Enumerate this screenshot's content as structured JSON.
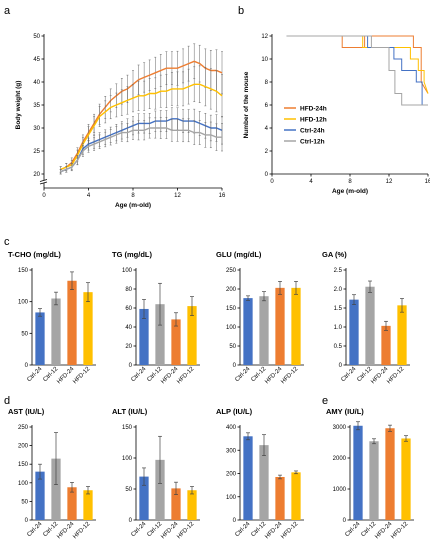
{
  "panel_letters": {
    "a": "a",
    "b": "b",
    "c": "c",
    "d": "d",
    "e": "e"
  },
  "chart_data": [
    {
      "panel": "a",
      "type": "line",
      "xlabel": "Age (m-old)",
      "ylabel": "Body weight (g)",
      "xlim": [
        0,
        16
      ],
      "ylim": [
        20,
        50
      ],
      "xticks": [
        0,
        4,
        8,
        12,
        16
      ],
      "yticks": [
        20,
        25,
        30,
        35,
        40,
        45,
        50
      ],
      "broken_axis": true,
      "error_bars": "SE",
      "series": [
        {
          "color": "#ED7D31",
          "x": [
            1.5,
            2,
            2.5,
            3,
            3.5,
            4,
            4.5,
            5,
            5.5,
            6,
            6.5,
            7,
            7.5,
            8,
            8.5,
            9,
            9.5,
            10,
            10.5,
            11,
            11.5,
            12,
            12.5,
            13,
            13.5,
            14,
            14.5,
            15,
            15.5,
            16
          ],
          "y": [
            21,
            21.5,
            22.5,
            24.5,
            27,
            29,
            31,
            33,
            34.5,
            36,
            37,
            38,
            38.5,
            39.5,
            40.5,
            41,
            41.5,
            42,
            42.5,
            43,
            43,
            43,
            43.5,
            44,
            44.5,
            44,
            43,
            42.5,
            42.5,
            42
          ],
          "err": [
            0.6,
            0.8,
            1,
            1.2,
            1.5,
            1.8,
            2,
            2.2,
            2.4,
            2.5,
            2.6,
            2.8,
            3,
            3,
            3.2,
            3.2,
            3.3,
            3.4,
            3.5,
            3.6,
            3.6,
            3.7,
            3.7,
            3.8,
            3.8,
            4,
            4.2,
            4.4,
            4.5,
            4.6
          ]
        },
        {
          "color": "#FFC000",
          "x": [
            1.5,
            2,
            2.5,
            3,
            3.5,
            4,
            4.5,
            5,
            5.5,
            6,
            6.5,
            7,
            7.5,
            8,
            8.5,
            9,
            9.5,
            10,
            10.5,
            11,
            11.5,
            12,
            12.5,
            13,
            13.5,
            14,
            14.5,
            15,
            15.5,
            16
          ],
          "y": [
            21,
            21.5,
            22,
            24,
            26.5,
            28.5,
            30.5,
            32.5,
            33.5,
            34.5,
            35,
            35.5,
            36,
            36.5,
            37,
            37,
            37.5,
            37.5,
            38,
            38,
            38.5,
            38.5,
            38.5,
            39,
            39.5,
            39.5,
            39,
            38.5,
            38,
            37
          ],
          "err": [
            0.6,
            0.8,
            1,
            1.2,
            1.5,
            1.8,
            2,
            2.2,
            2.4,
            2.5,
            2.6,
            2.8,
            3,
            3,
            3.2,
            3.2,
            3.3,
            3.4,
            3.5,
            3.6,
            3.6,
            3.7,
            3.7,
            3.8,
            3.8,
            4,
            4.2,
            4.4,
            4.5,
            4.6
          ]
        },
        {
          "color": "#4472C4",
          "x": [
            1.5,
            2,
            2.5,
            3,
            3.5,
            4,
            4.5,
            5,
            5.5,
            6,
            6.5,
            7,
            7.5,
            8,
            8.5,
            9,
            9.5,
            10,
            10.5,
            11,
            11.5,
            12,
            12.5,
            13,
            13.5,
            14,
            14.5,
            15,
            15.5,
            16
          ],
          "y": [
            20.5,
            21,
            21.5,
            23,
            25.5,
            26.5,
            27,
            27.5,
            28,
            28.5,
            29,
            29.5,
            30,
            30.5,
            31,
            31,
            31,
            31.5,
            31.5,
            31.5,
            32,
            32,
            31.5,
            31.5,
            31.5,
            31,
            30.5,
            30,
            30,
            29.5
          ],
          "err": [
            0.5,
            0.6,
            0.8,
            1,
            1.2,
            1.3,
            1.4,
            1.5,
            1.6,
            1.7,
            1.8,
            1.9,
            2,
            2,
            2.1,
            2.1,
            2.2,
            2.2,
            2.3,
            2.3,
            2.4,
            2.4,
            2.5,
            2.5,
            2.6,
            2.6,
            2.7,
            2.8,
            2.9,
            3
          ]
        },
        {
          "color": "#A5A5A5",
          "x": [
            1.5,
            2,
            2.5,
            3,
            3.5,
            4,
            4.5,
            5,
            5.5,
            6,
            6.5,
            7,
            7.5,
            8,
            8.5,
            9,
            9.5,
            10,
            10.5,
            11,
            11.5,
            12,
            12.5,
            13,
            13.5,
            14,
            14.5,
            15,
            15.5,
            16
          ],
          "y": [
            20.5,
            21,
            21.5,
            23,
            25,
            26,
            26.5,
            27,
            27.5,
            28,
            28.5,
            29,
            29,
            29.5,
            29.5,
            29.5,
            30,
            30,
            30,
            30,
            29.5,
            29.5,
            29.5,
            29.5,
            29,
            29,
            28.5,
            28.5,
            28,
            28
          ],
          "err": [
            0.5,
            0.6,
            0.8,
            1,
            1.2,
            1.3,
            1.4,
            1.5,
            1.6,
            1.7,
            1.8,
            1.9,
            2,
            2,
            2.1,
            2.1,
            2.2,
            2.2,
            2.3,
            2.3,
            2.4,
            2.4,
            2.5,
            2.5,
            2.6,
            2.6,
            2.7,
            2.8,
            2.9,
            3
          ]
        }
      ]
    },
    {
      "panel": "b",
      "type": "line",
      "subtype": "step",
      "xlabel": "Age (m-old)",
      "ylabel": "Number of the mouse",
      "xlim": [
        0,
        16
      ],
      "ylim": [
        0,
        12
      ],
      "xticks": [
        0,
        4,
        8,
        12,
        16
      ],
      "yticks": [
        0,
        2,
        4,
        6,
        8,
        10,
        12
      ],
      "legend_position": "center-right",
      "series": [
        {
          "name": "HFD-24h",
          "color": "#ED7D31",
          "x": [
            1.5,
            7.2,
            7.2,
            9.5,
            9.5,
            14.5,
            14.5,
            15.3,
            15.3,
            16
          ],
          "y": [
            12,
            12,
            11,
            11,
            12,
            12,
            11,
            11,
            8,
            7
          ]
        },
        {
          "name": "HFD-12h",
          "color": "#FFC000",
          "x": [
            1.5,
            9.3,
            9.3,
            14.2,
            14.2,
            15,
            15,
            15.6,
            15.6,
            16
          ],
          "y": [
            12,
            12,
            11,
            11,
            10,
            10,
            9,
            9,
            8,
            7
          ]
        },
        {
          "name": "Ctrl-24h",
          "color": "#4472C4",
          "x": [
            1.5,
            9.8,
            9.8,
            12.5,
            12.5,
            13.3,
            13.3,
            14.8,
            14.8,
            15.4,
            15.4,
            16
          ],
          "y": [
            12,
            12,
            11,
            11,
            10,
            10,
            9,
            9,
            8,
            8,
            6,
            6
          ]
        },
        {
          "name": "Ctrl-12h",
          "color": "#A5A5A5",
          "x": [
            1.5,
            10.2,
            10.2,
            12,
            12,
            12.6,
            12.6,
            13.3,
            13.3,
            15.2,
            15.2,
            16
          ],
          "y": [
            12,
            12,
            11,
            11,
            9,
            9,
            7,
            7,
            6,
            6,
            6,
            6
          ]
        }
      ]
    },
    {
      "panel": "c1",
      "type": "bar",
      "title": "T-CHO (mg/dL)",
      "categories": [
        "Ctrl-24",
        "Ctrl-12",
        "HFD-24",
        "HFD-12"
      ],
      "values": [
        83,
        105,
        133,
        115
      ],
      "err": [
        6,
        10,
        14,
        15
      ],
      "ylim": [
        0,
        150
      ],
      "yticks": [
        0,
        50,
        100,
        150
      ]
    },
    {
      "panel": "c2",
      "type": "bar",
      "title": "TG (mg/dL)",
      "categories": [
        "Ctrl-24",
        "Ctrl-12",
        "HFD-24",
        "HFD-12"
      ],
      "values": [
        59,
        64,
        48,
        62
      ],
      "err": [
        10,
        22,
        7,
        10
      ],
      "ylim": [
        0,
        100
      ],
      "yticks": [
        0,
        20,
        40,
        60,
        80,
        100
      ]
    },
    {
      "panel": "c3",
      "type": "bar",
      "title": "GLU (mg/dL)",
      "categories": [
        "Ctrl-24",
        "Ctrl-12",
        "HFD-24",
        "HFD-12"
      ],
      "values": [
        176,
        181,
        203,
        203
      ],
      "err": [
        6,
        12,
        17,
        17
      ],
      "ylim": [
        0,
        250
      ],
      "yticks": [
        0,
        50,
        100,
        150,
        200,
        250
      ]
    },
    {
      "panel": "c4",
      "type": "bar",
      "title": "GA (%)",
      "categories": [
        "Ctrl-24",
        "Ctrl-12",
        "HFD-24",
        "HFD-12"
      ],
      "values": [
        1.72,
        2.06,
        1.03,
        1.57
      ],
      "err": [
        0.13,
        0.15,
        0.12,
        0.18
      ],
      "ylim": [
        0,
        2.5
      ],
      "yticks": [
        0,
        0.5,
        1,
        1.5,
        2,
        2.5
      ],
      "ytick_labels": [
        "0",
        "0.5",
        "1.0",
        "1.5",
        "2.0",
        "2.5"
      ]
    },
    {
      "panel": "d1",
      "type": "bar",
      "title": "AST (IU/L)",
      "categories": [
        "Ctrl-24",
        "Ctrl-12",
        "HFD-24",
        "HFD-12"
      ],
      "values": [
        130,
        165,
        88,
        80
      ],
      "err": [
        20,
        70,
        13,
        10
      ],
      "ylim": [
        0,
        250
      ],
      "yticks": [
        0,
        50,
        100,
        150,
        200,
        250
      ]
    },
    {
      "panel": "d2",
      "type": "bar",
      "title": "ALT (IU/L)",
      "categories": [
        "Ctrl-24",
        "Ctrl-12",
        "HFD-24",
        "HFD-12"
      ],
      "values": [
        70,
        97,
        51,
        48
      ],
      "err": [
        14,
        38,
        10,
        6
      ],
      "ylim": [
        0,
        150
      ],
      "yticks": [
        0,
        50,
        100,
        150
      ]
    },
    {
      "panel": "d3",
      "type": "bar",
      "title": "ALP (IU/L)",
      "categories": [
        "Ctrl-24",
        "Ctrl-12",
        "HFD-24",
        "HFD-12"
      ],
      "values": [
        360,
        322,
        185,
        205
      ],
      "err": [
        15,
        45,
        8,
        6
      ],
      "ylim": [
        0,
        400
      ],
      "yticks": [
        0,
        100,
        200,
        300,
        400
      ]
    },
    {
      "panel": "e1",
      "type": "bar",
      "title": "AMY (IU/L)",
      "categories": [
        "Ctrl-24",
        "Ctrl-12",
        "HFD-24",
        "HFD-12"
      ],
      "values": [
        3040,
        2540,
        2960,
        2630
      ],
      "err": [
        130,
        80,
        100,
        90
      ],
      "ylim": [
        0,
        3000
      ],
      "yticks": [
        0,
        1000,
        2000,
        3000
      ]
    }
  ],
  "bar_colors": [
    "#4472C4",
    "#A5A5A5",
    "#ED7D31",
    "#FFC000"
  ]
}
